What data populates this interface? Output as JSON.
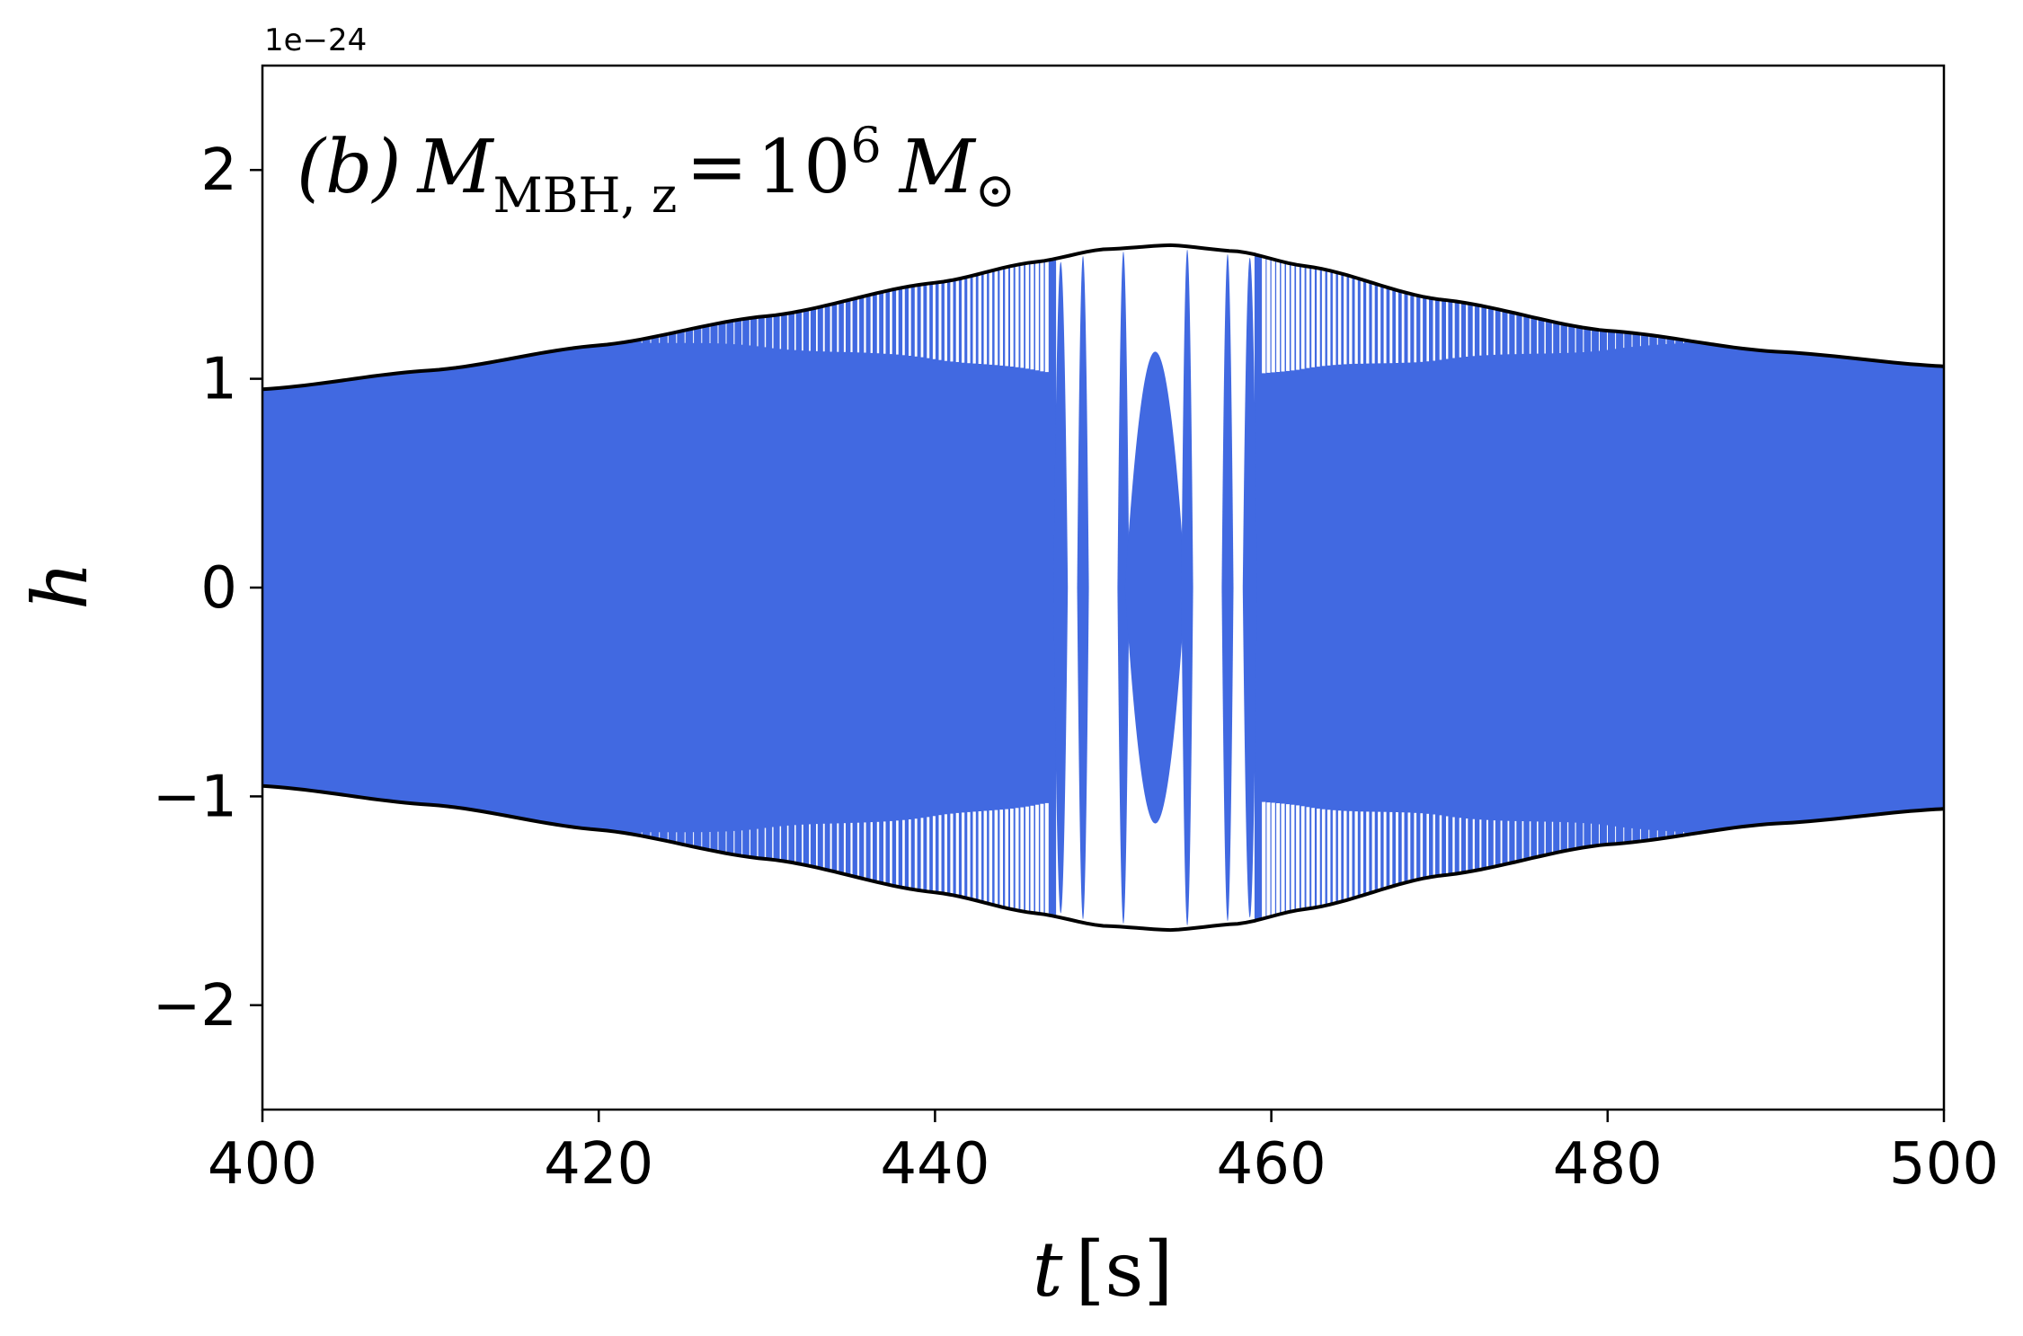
{
  "chart_data": {
    "type": "line",
    "axes": {
      "xlim": [
        400,
        500
      ],
      "ylim": [
        -2.5,
        2.5
      ],
      "x_ticks": [
        400,
        420,
        440,
        460,
        480,
        500
      ],
      "x_tick_labels": [
        "400",
        "420",
        "440",
        "460",
        "480",
        "500"
      ],
      "y_ticks": [
        -2,
        -1,
        0,
        1,
        2
      ],
      "y_tick_labels": [
        "−2",
        "−1",
        "0",
        "1",
        "2"
      ],
      "y_offset_label": "1e−24",
      "grid": false
    },
    "xlabel": {
      "var": "t",
      "unit": "s"
    },
    "ylabel": {
      "var": "h"
    },
    "annotation": {
      "panel": "(b)",
      "symbol": "M",
      "subscript": "MBH, z",
      "equals": "=",
      "mantissa": "10",
      "exponent": "6",
      "unit_symbol": "M",
      "unit_sub": "⊙"
    },
    "series": [
      {
        "style": "filled oscillation",
        "color": "#4169e1",
        "envelope_points": [
          {
            "x": 400,
            "y": 0.95
          },
          {
            "x": 410,
            "y": 1.04
          },
          {
            "x": 420,
            "y": 1.16
          },
          {
            "x": 430,
            "y": 1.3
          },
          {
            "x": 440,
            "y": 1.46
          },
          {
            "x": 446,
            "y": 1.56
          },
          {
            "x": 450,
            "y": 1.62
          },
          {
            "x": 454,
            "y": 1.64
          },
          {
            "x": 458,
            "y": 1.61
          },
          {
            "x": 462,
            "y": 1.54
          },
          {
            "x": 470,
            "y": 1.38
          },
          {
            "x": 480,
            "y": 1.23
          },
          {
            "x": 490,
            "y": 1.13
          },
          {
            "x": 500,
            "y": 1.06
          }
        ],
        "chirp_center": 453.5,
        "central_lobe": {
          "x_from": 451.3,
          "x_to": 454.9,
          "amplitude": 1.13
        },
        "distinct_cycle_edges": [
          447.2,
          448.8,
          451.3,
          454.9,
          457.4,
          459.0
        ]
      },
      {
        "style": "envelope lines",
        "color": "#000000",
        "points": [
          {
            "x": 400,
            "y": 0.95
          },
          {
            "x": 410,
            "y": 1.04
          },
          {
            "x": 420,
            "y": 1.16
          },
          {
            "x": 430,
            "y": 1.3
          },
          {
            "x": 440,
            "y": 1.46
          },
          {
            "x": 446,
            "y": 1.56
          },
          {
            "x": 450,
            "y": 1.62
          },
          {
            "x": 454,
            "y": 1.64
          },
          {
            "x": 458,
            "y": 1.61
          },
          {
            "x": 462,
            "y": 1.54
          },
          {
            "x": 470,
            "y": 1.38
          },
          {
            "x": 480,
            "y": 1.23
          },
          {
            "x": 490,
            "y": 1.13
          },
          {
            "x": 500,
            "y": 1.06
          }
        ]
      }
    ]
  }
}
